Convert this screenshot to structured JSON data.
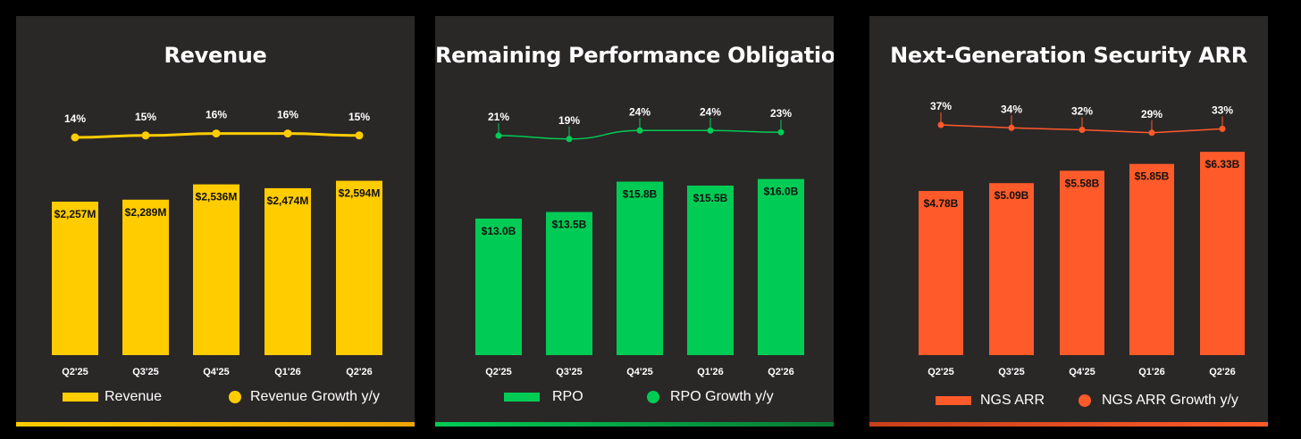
{
  "chart_data": [
    {
      "type": "bar",
      "title": "Revenue",
      "categories": [
        "Q2'25",
        "Q3'25",
        "Q4'25",
        "Q1'26",
        "Q2'26"
      ],
      "series": [
        {
          "name": "Revenue",
          "type": "bar",
          "values": [
            2257,
            2289,
            2536,
            2474,
            2594
          ],
          "labels": [
            "$2,257M",
            "$2,289M",
            "$2,536M",
            "$2,474M",
            "$2,594M"
          ]
        },
        {
          "name": "Revenue Growth y/y",
          "type": "line",
          "values": [
            14,
            15,
            16,
            16,
            15
          ],
          "labels": [
            "14%",
            "15%",
            "16%",
            "16%",
            "15%"
          ]
        }
      ],
      "color": "#ffcc00",
      "legend_position": "bottom"
    },
    {
      "type": "bar",
      "title": "Remaining Performance Obligation",
      "categories": [
        "Q2'25",
        "Q3'25",
        "Q4'25",
        "Q1'26",
        "Q2'26"
      ],
      "series": [
        {
          "name": "RPO",
          "type": "bar",
          "values": [
            13.0,
            13.5,
            15.8,
            15.5,
            16.0
          ],
          "labels": [
            "$13.0B",
            "$13.5B",
            "$15.8B",
            "$15.5B",
            "$16.0B"
          ]
        },
        {
          "name": "RPO Growth y/y",
          "type": "line",
          "values": [
            21,
            19,
            24,
            24,
            23
          ],
          "labels": [
            "21%",
            "19%",
            "24%",
            "24%",
            "23%"
          ]
        }
      ],
      "color": "#00cc55",
      "legend_position": "bottom"
    },
    {
      "type": "bar",
      "title": "Next-Generation Security ARR",
      "categories": [
        "Q2'25",
        "Q3'25",
        "Q4'25",
        "Q1'26",
        "Q2'26"
      ],
      "series": [
        {
          "name": "NGS ARR",
          "type": "bar",
          "values": [
            4.78,
            5.09,
            5.58,
            5.85,
            6.33
          ],
          "labels": [
            "$4.78B",
            "$5.09B",
            "$5.58B",
            "$5.85B",
            "$6.33B"
          ]
        },
        {
          "name": "NGS ARR Growth y/y",
          "type": "line",
          "values": [
            37,
            34,
            32,
            29,
            33
          ],
          "labels": [
            "37%",
            "34%",
            "32%",
            "29%",
            "33%"
          ]
        }
      ],
      "color": "#ff5a2a",
      "legend_position": "bottom"
    }
  ]
}
